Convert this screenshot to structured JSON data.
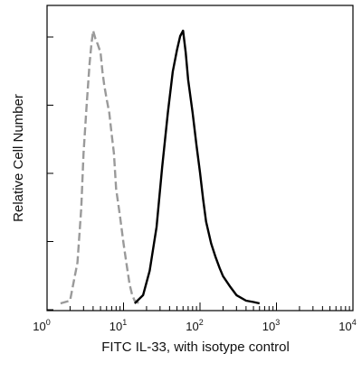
{
  "chart_data": {
    "type": "line",
    "title": "",
    "xlabel": "FITC  IL-33,  with isotype control",
    "ylabel": "Relative Cell Number",
    "x_scale": "log",
    "xlim": [
      1,
      10000
    ],
    "ylim": [
      0,
      100
    ],
    "x_ticks": [
      {
        "base": "10",
        "exp": "0"
      },
      {
        "base": "10",
        "exp": "1"
      },
      {
        "base": "10",
        "exp": "2"
      },
      {
        "base": "10",
        "exp": "3"
      },
      {
        "base": "10",
        "exp": "4"
      }
    ],
    "y_ticks_labeled": false,
    "grid": false,
    "legend": "none",
    "series": [
      {
        "style": "dashed",
        "color": "#9a9a9a",
        "x": [
          1.5,
          2.0,
          2.5,
          2.8,
          3.0,
          3.3,
          3.6,
          3.8,
          4.0,
          4.3,
          4.6,
          5.0,
          5.3,
          5.6,
          6.0,
          6.5,
          7.0,
          7.5,
          8.0,
          9.0,
          10.0,
          11.0,
          12.0,
          13.0,
          14.0,
          15.0,
          16.0
        ],
        "y": [
          0,
          1,
          15,
          35,
          55,
          73,
          88,
          95,
          100,
          97,
          95,
          92,
          85,
          80,
          75,
          70,
          62,
          55,
          42,
          32,
          22,
          14,
          7,
          3,
          1,
          0.5,
          0
        ]
      },
      {
        "style": "solid",
        "color": "#000000",
        "x": [
          14,
          18,
          22,
          27,
          32,
          38,
          44,
          50,
          55,
          60,
          65,
          70,
          80,
          90,
          100,
          110,
          120,
          140,
          160,
          180,
          200,
          250,
          300,
          400,
          500,
          600
        ],
        "y": [
          0,
          3,
          12,
          28,
          50,
          70,
          85,
          93,
          98,
          100,
          92,
          82,
          70,
          58,
          48,
          38,
          30,
          22,
          17,
          13,
          10,
          6,
          3,
          1,
          0.5,
          0
        ]
      }
    ]
  }
}
